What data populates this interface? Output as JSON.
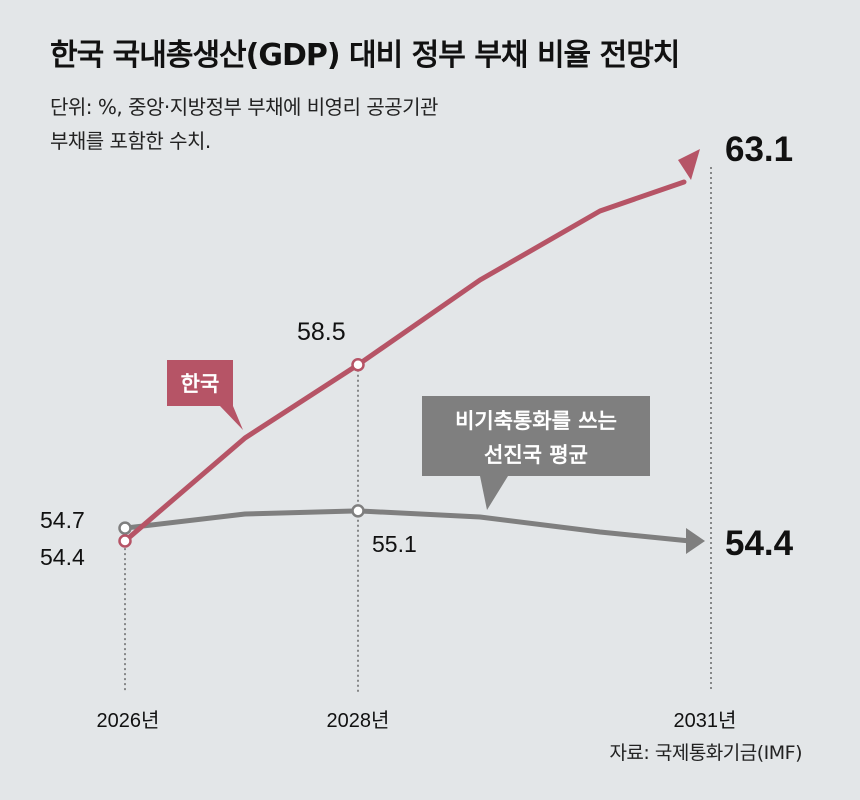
{
  "title": "한국 국내총생산(GDP) 대비 정부 부채 비율 전망치",
  "subtitle_lines": [
    "단위: %, 중앙·지방정부 부채에 비영리 공공기관",
    "부채를 포함한 수치."
  ],
  "source": "자료: 국제통화기금(IMF)",
  "colors": {
    "korea": "#b65466",
    "advanced": "#7f7f7f",
    "background": "#e3e6e8"
  },
  "chart_data": {
    "type": "line",
    "x": [
      "2026년",
      "2028년",
      "2031년"
    ],
    "series": [
      {
        "name": "한국",
        "color": "#b65466",
        "values": [
          54.4,
          58.5,
          63.1
        ],
        "value_labels": [
          "54.4",
          "58.5",
          "63.1"
        ]
      },
      {
        "name": "비기축통화를 쓰는 선진국 평균",
        "name_lines": [
          "비기축통화를 쓰는",
          "선진국 평균"
        ],
        "color": "#7f7f7f",
        "values": [
          54.7,
          55.1,
          54.4
        ],
        "value_labels": [
          "54.7",
          "55.1",
          "54.4"
        ]
      }
    ],
    "grid": false,
    "legend": "inline callouts"
  }
}
